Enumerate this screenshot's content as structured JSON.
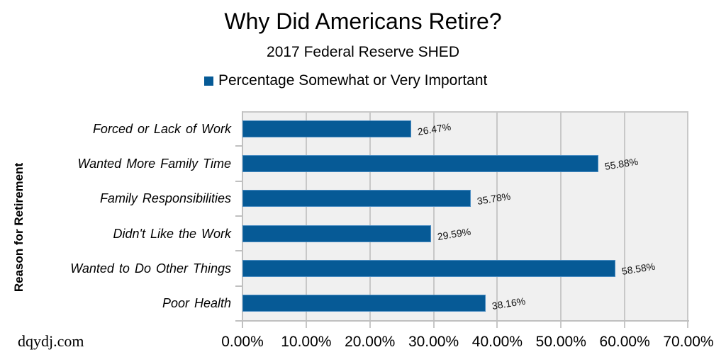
{
  "chart_data": {
    "type": "bar",
    "orientation": "horizontal",
    "title": "Why Did Americans Retire?",
    "subtitle": "2017 Federal Reserve SHED",
    "xlabel": "",
    "ylabel": "Reason for Retirement",
    "xlim": [
      0,
      70
    ],
    "x_ticks": [
      "0.00%",
      "10.00%",
      "20.00%",
      "30.00%",
      "40.00%",
      "50.00%",
      "60.00%",
      "70.00%"
    ],
    "grid": true,
    "legend_position": "top",
    "categories": [
      "Forced or Lack of Work",
      "Wanted More Family Time",
      "Family  Responsibilities",
      "Didn't Like the Work",
      "Wanted to Do Other Things",
      "Poor Health"
    ],
    "series": [
      {
        "name": "Percentage Somewhat or Very Important",
        "color": "#065A96",
        "values": [
          26.47,
          55.88,
          35.78,
          29.59,
          58.58,
          38.16
        ],
        "labels": [
          "26.47%",
          "55.88%",
          "35.78%",
          "29.59%",
          "58.58%",
          "38.16%"
        ]
      }
    ]
  },
  "colors": {
    "bar": "#065A96",
    "plot_background": "#f0f0f0",
    "gridline": "#c8c8c8"
  },
  "watermark": "dqydj.com"
}
